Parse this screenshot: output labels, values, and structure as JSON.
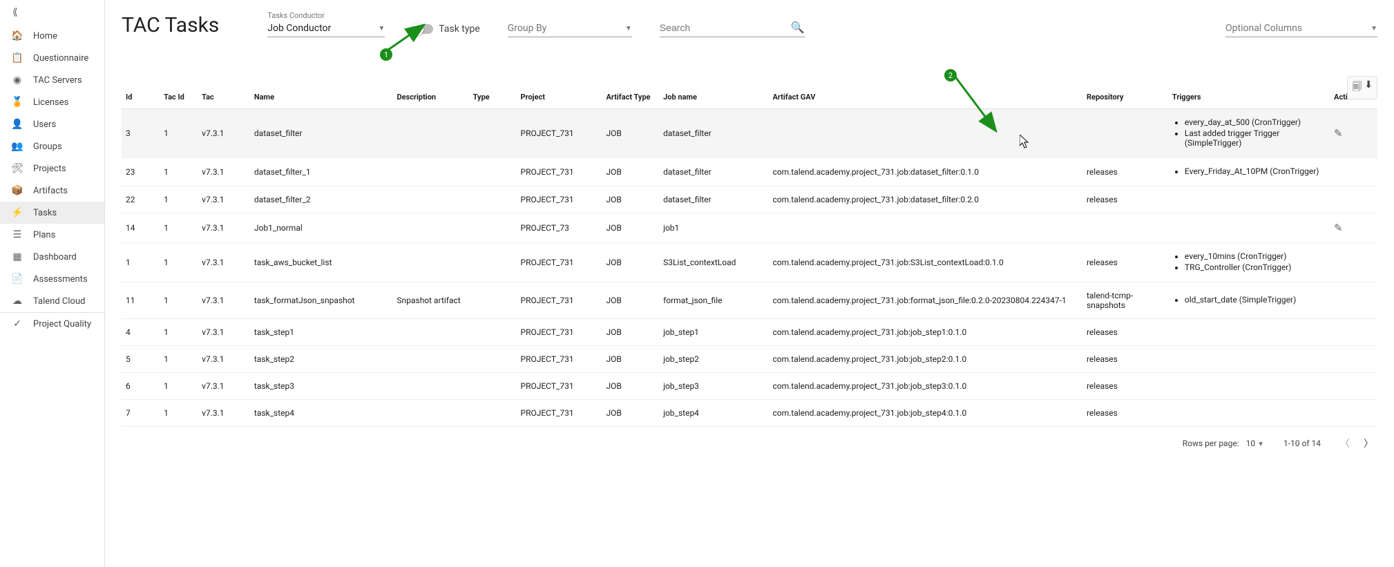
{
  "sidebar": {
    "items": [
      {
        "icon": "⟪",
        "label": ""
      },
      {
        "icon": "🏠",
        "label": "Home"
      },
      {
        "icon": "📋",
        "label": "Questionnaire"
      },
      {
        "icon": "◉",
        "label": "TAC Servers"
      },
      {
        "icon": "🏅",
        "label": "Licenses"
      },
      {
        "icon": "👤",
        "label": "Users"
      },
      {
        "icon": "👥",
        "label": "Groups"
      },
      {
        "icon": "🛠",
        "label": "Projects"
      },
      {
        "icon": "📦",
        "label": "Artifacts"
      },
      {
        "icon": "⚡",
        "label": "Tasks"
      },
      {
        "icon": "☰",
        "label": "Plans"
      },
      {
        "icon": "▦",
        "label": "Dashboard"
      },
      {
        "icon": "📄",
        "label": "Assessments"
      },
      {
        "icon": "☁",
        "label": "Talend Cloud"
      },
      {
        "icon": "✓",
        "label": "Project Quality"
      }
    ],
    "active_index": 9
  },
  "header": {
    "title": "TAC Tasks",
    "conductor_label": "Tasks Conductor",
    "conductor_value": "Job Conductor",
    "task_type_label": "Task type",
    "group_by_placeholder": "Group By",
    "search_placeholder": "Search",
    "optional_columns_placeholder": "Optional Columns"
  },
  "annotations": {
    "badge1": "1",
    "badge2": "2"
  },
  "table": {
    "columns": [
      "Id",
      "Tac Id",
      "Tac",
      "Name",
      "Description",
      "Type",
      "Project",
      "Artifact Type",
      "Job name",
      "Artifact GAV",
      "Repository",
      "Triggers",
      "Actions"
    ],
    "rows": [
      {
        "id": "3",
        "tacId": "1",
        "tac": "v7.3.1",
        "name": "dataset_filter",
        "description": "",
        "type": "",
        "project": "PROJECT_731",
        "artifactType": "JOB",
        "jobName": "dataset_filter",
        "gav": "",
        "repo": "",
        "triggers": [
          "every_day_at_500 (CronTrigger)",
          "Last added trigger Trigger (SimpleTrigger)"
        ],
        "hover": true,
        "edit": true
      },
      {
        "id": "23",
        "tacId": "1",
        "tac": "v7.3.1",
        "name": "dataset_filter_1",
        "description": "",
        "type": "",
        "project": "PROJECT_731",
        "artifactType": "JOB",
        "jobName": "dataset_filter",
        "gav": "com.talend.academy.project_731.job:dataset_filter:0.1.0",
        "repo": "releases",
        "triggers": [
          "Every_Friday_At_10PM (CronTrigger)"
        ]
      },
      {
        "id": "22",
        "tacId": "1",
        "tac": "v7.3.1",
        "name": "dataset_filter_2",
        "description": "",
        "type": "",
        "project": "PROJECT_731",
        "artifactType": "JOB",
        "jobName": "dataset_filter",
        "gav": "com.talend.academy.project_731.job:dataset_filter:0.2.0",
        "repo": "releases",
        "triggers": []
      },
      {
        "id": "14",
        "tacId": "1",
        "tac": "v7.3.1",
        "name": "Job1_normal",
        "description": "",
        "type": "",
        "project": "PROJECT_73",
        "artifactType": "JOB",
        "jobName": "job1",
        "gav": "",
        "repo": "",
        "triggers": [],
        "edit": true
      },
      {
        "id": "1",
        "tacId": "1",
        "tac": "v7.3.1",
        "name": "task_aws_bucket_list",
        "description": "",
        "type": "",
        "project": "PROJECT_731",
        "artifactType": "JOB",
        "jobName": "S3List_contextLoad",
        "gav": "com.talend.academy.project_731.job:S3List_contextLoad:0.1.0",
        "repo": "releases",
        "triggers": [
          "every_10mins (CronTrigger)",
          "TRG_Controller (CronTrigger)"
        ]
      },
      {
        "id": "11",
        "tacId": "1",
        "tac": "v7.3.1",
        "name": "task_formatJson_snpashot",
        "description": "Snpashot artifact",
        "type": "",
        "project": "PROJECT_731",
        "artifactType": "JOB",
        "jobName": "format_json_file",
        "gav": "com.talend.academy.project_731.job:format_json_file:0.2.0-20230804.224347-1",
        "repo": "talend-tcmp-snapshots",
        "triggers": [
          "old_start_date (SimpleTrigger)"
        ]
      },
      {
        "id": "4",
        "tacId": "1",
        "tac": "v7.3.1",
        "name": "task_step1",
        "description": "",
        "type": "",
        "project": "PROJECT_731",
        "artifactType": "JOB",
        "jobName": "job_step1",
        "gav": "com.talend.academy.project_731.job:job_step1:0.1.0",
        "repo": "releases",
        "triggers": []
      },
      {
        "id": "5",
        "tacId": "1",
        "tac": "v7.3.1",
        "name": "task_step2",
        "description": "",
        "type": "",
        "project": "PROJECT_731",
        "artifactType": "JOB",
        "jobName": "job_step2",
        "gav": "com.talend.academy.project_731.job:job_step2:0.1.0",
        "repo": "releases",
        "triggers": []
      },
      {
        "id": "6",
        "tacId": "1",
        "tac": "v7.3.1",
        "name": "task_step3",
        "description": "",
        "type": "",
        "project": "PROJECT_731",
        "artifactType": "JOB",
        "jobName": "job_step3",
        "gav": "com.talend.academy.project_731.job:job_step3:0.1.0",
        "repo": "releases",
        "triggers": []
      },
      {
        "id": "7",
        "tacId": "1",
        "tac": "v7.3.1",
        "name": "task_step4",
        "description": "",
        "type": "",
        "project": "PROJECT_731",
        "artifactType": "JOB",
        "jobName": "job_step4",
        "gav": "com.talend.academy.project_731.job:job_step4:0.1.0",
        "repo": "releases",
        "triggers": []
      }
    ]
  },
  "pagination": {
    "rows_per_page_label": "Rows per page:",
    "rows_per_page_value": "10",
    "range_text": "1-10 of 14"
  }
}
